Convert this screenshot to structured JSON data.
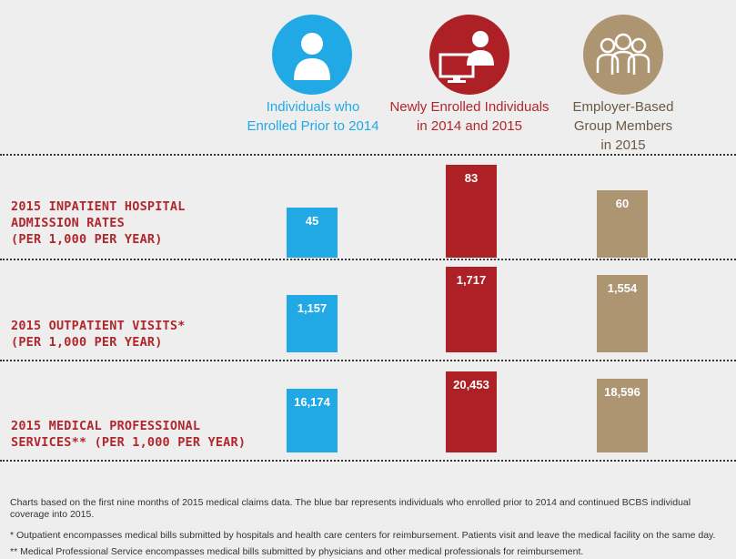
{
  "colors": {
    "blue": "#21a9e6",
    "red": "#ad2026",
    "tan": "#ae9572",
    "row_label": "#b0272d",
    "blue_text": "#21a9e6",
    "red_text": "#b0272d",
    "tan_text": "#6b5a45"
  },
  "columns": [
    {
      "label": "Individuals who Enrolled Prior to 2014",
      "icon": "person-icon"
    },
    {
      "label": "Newly Enrolled Individuals in 2014 and 2015",
      "icon": "person-with-monitor-icon"
    },
    {
      "label": "Employer-Based Group Members in 2015",
      "icon": "group-icon"
    }
  ],
  "column_label_lines": [
    [
      "Individuals who",
      "Enrolled Prior to 2014"
    ],
    [
      "Newly Enrolled Individuals",
      "in 2014 and 2015"
    ],
    [
      "Employer-Based",
      "Group Members",
      "in 2015"
    ]
  ],
  "rows": [
    {
      "label": "2015 INPATIENT HOSPITAL\nADMISSION RATES\n(PER 1,000 PER YEAR)"
    },
    {
      "label": "2015 OUTPATIENT VISITS*\n(PER 1,000 PER YEAR)"
    },
    {
      "label": "2015 MEDICAL PROFESSIONAL\nSERVICES** (PER 1,000 PER YEAR)"
    }
  ],
  "chart_data": {
    "type": "bar",
    "categories": [
      "Individuals who Enrolled Prior to 2014",
      "Newly Enrolled Individuals in 2014 and 2015",
      "Employer-Based Group Members in 2015"
    ],
    "panels": [
      {
        "name": "2015 INPATIENT HOSPITAL ADMISSION RATES (PER 1,000 PER YEAR)",
        "values": [
          45,
          83,
          60
        ],
        "labels": [
          "45",
          "83",
          "60"
        ],
        "ylim": [
          0,
          83
        ]
      },
      {
        "name": "2015 OUTPATIENT VISITS* (PER 1,000 PER YEAR)",
        "values": [
          1157,
          1717,
          1554
        ],
        "labels": [
          "1,157",
          "1,717",
          "1,554"
        ],
        "ylim": [
          0,
          1717
        ]
      },
      {
        "name": "2015 MEDICAL PROFESSIONAL SERVICES** (PER 1,000 PER YEAR)",
        "values": [
          16174,
          20453,
          18596
        ],
        "labels": [
          "16,174",
          "20,453",
          "18,596"
        ],
        "ylim": [
          0,
          20453
        ]
      }
    ]
  },
  "footnotes": [
    "Charts based on the first nine months of 2015 medical claims data. The blue bar represents individuals who enrolled prior to 2014 and continued BCBS individual coverage into 2015.",
    "* Outpatient encompasses medical bills submitted by hospitals and health care centers for reimbursement. Patients visit and leave the medical facility on the same day.",
    "** Medical Professional Service encompasses medical bills submitted by physicians and other medical professionals for reimbursement."
  ]
}
